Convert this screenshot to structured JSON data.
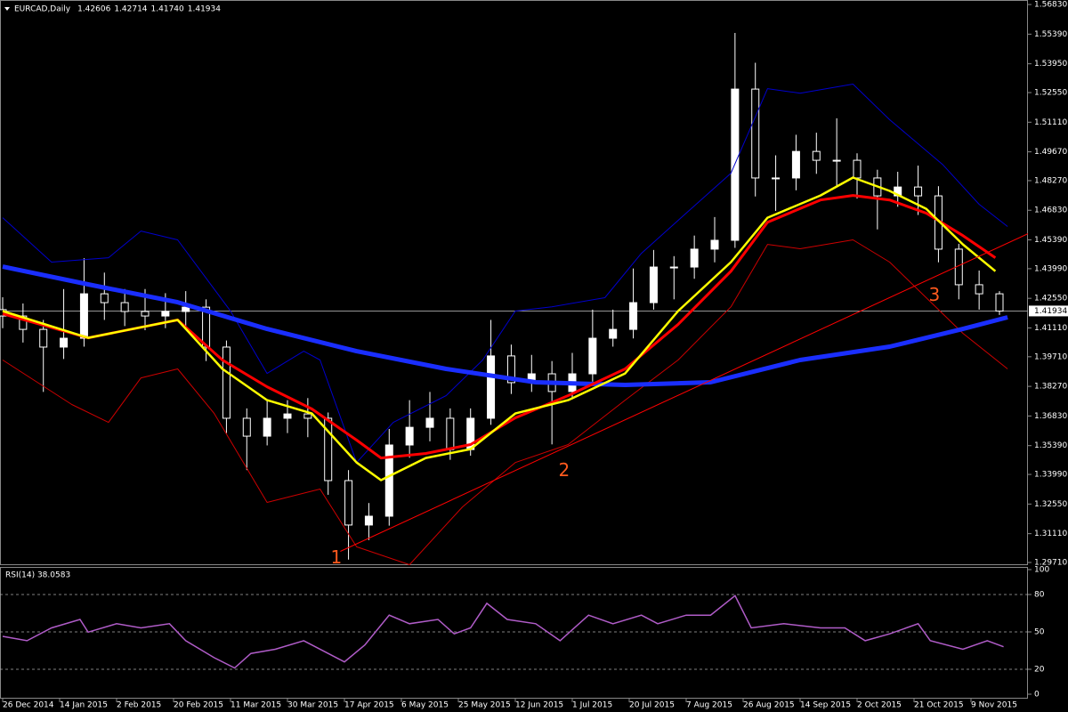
{
  "chart_data": [
    {
      "type": "candlestick",
      "title": "EURCAD,Daily",
      "quote": [
        "1.42606",
        "1.42714",
        "1.41740",
        "1.41934"
      ],
      "xlim": [
        0,
        252
      ],
      "xticks": [
        {
          "value": 0,
          "label": "26 Dec 2014"
        },
        {
          "value": 14,
          "label": "14 Jan 2015"
        },
        {
          "value": 28,
          "label": "2 Feb 2015"
        },
        {
          "value": 42,
          "label": "20 Feb 2015"
        },
        {
          "value": 56,
          "label": "11 Mar 2015"
        },
        {
          "value": 70,
          "label": "30 Mar 2015"
        },
        {
          "value": 84,
          "label": "17 Apr 2015"
        },
        {
          "value": 98,
          "label": "6 May 2015"
        },
        {
          "value": 112,
          "label": "25 May 2015"
        },
        {
          "value": 126,
          "label": "12 Jun 2015"
        },
        {
          "value": 140,
          "label": "1 Jul 2015"
        },
        {
          "value": 154,
          "label": "20 Jul 2015"
        },
        {
          "value": 168,
          "label": "7 Aug 2015"
        },
        {
          "value": 182,
          "label": "26 Aug 2015"
        },
        {
          "value": 196,
          "label": "14 Sep 2015"
        },
        {
          "value": 210,
          "label": "2 Oct 2015"
        },
        {
          "value": 224,
          "label": "21 Oct 2015"
        },
        {
          "value": 238,
          "label": "9 Nov 2015"
        }
      ],
      "ylim": [
        1.2958,
        1.5705
      ],
      "yticks": [
        {
          "value": 1.5683,
          "label": "1.56830"
        },
        {
          "value": 1.5539,
          "label": "1.55390"
        },
        {
          "value": 1.5395,
          "label": "1.53950"
        },
        {
          "value": 1.5255,
          "label": "1.52550"
        },
        {
          "value": 1.5111,
          "label": "1.51110"
        },
        {
          "value": 1.4967,
          "label": "1.49670"
        },
        {
          "value": 1.4827,
          "label": "1.48270"
        },
        {
          "value": 1.4683,
          "label": "1.46830"
        },
        {
          "value": 1.4539,
          "label": "1.45390"
        },
        {
          "value": 1.4399,
          "label": "1.43990"
        },
        {
          "value": 1.4255,
          "label": "1.42550"
        },
        {
          "value": 1.4111,
          "label": "1.41110"
        },
        {
          "value": 1.3971,
          "label": "1.39710"
        },
        {
          "value": 1.3827,
          "label": "1.38270"
        },
        {
          "value": 1.3683,
          "label": "1.36830"
        },
        {
          "value": 1.3539,
          "label": "1.35390"
        },
        {
          "value": 1.3399,
          "label": "1.33990"
        },
        {
          "value": 1.3255,
          "label": "1.32550"
        },
        {
          "value": 1.3111,
          "label": "1.31110"
        },
        {
          "value": 1.2971,
          "label": "1.29710"
        }
      ],
      "last_price": {
        "value": 1.41934,
        "label": "1.41934"
      },
      "x": [
        0,
        5,
        10,
        15,
        20,
        25,
        30,
        35,
        40,
        45,
        50,
        55,
        60,
        65,
        70,
        75,
        80,
        85,
        90,
        95,
        100,
        105,
        110,
        115,
        120,
        125,
        130,
        135,
        140,
        145,
        150,
        155,
        160,
        165,
        170,
        175,
        180,
        185,
        190,
        195,
        200,
        205,
        210,
        215,
        220,
        225,
        230,
        235,
        240,
        245
      ],
      "open": [
        1.42,
        1.4169,
        1.4104,
        1.4018,
        1.4061,
        1.4277,
        1.4234,
        1.4191,
        1.4169,
        1.4191,
        1.4212,
        1.4018,
        1.3672,
        1.3585,
        1.3672,
        1.3693,
        1.3672,
        1.3369,
        1.3153,
        1.3196,
        1.3542,
        1.3628,
        1.3672,
        1.352,
        1.3672,
        1.3975,
        1.3845,
        1.3888,
        1.3802,
        1.3888,
        1.4061,
        1.4104,
        1.4234,
        1.4407,
        1.4407,
        1.4494,
        1.4537,
        1.5272,
        1.484,
        1.484,
        1.4969,
        1.4926,
        1.4926,
        1.484,
        1.4753,
        1.4796,
        1.4753,
        1.4494,
        1.4321,
        1.4277
      ],
      "high": [
        1.426,
        1.423,
        1.415,
        1.43,
        1.445,
        1.438,
        1.43,
        1.43,
        1.428,
        1.429,
        1.425,
        1.405,
        1.372,
        1.376,
        1.376,
        1.377,
        1.37,
        1.342,
        1.326,
        1.362,
        1.376,
        1.38,
        1.372,
        1.372,
        1.415,
        1.403,
        1.398,
        1.395,
        1.399,
        1.42,
        1.42,
        1.44,
        1.449,
        1.446,
        1.456,
        1.465,
        1.5545,
        1.54,
        1.495,
        1.505,
        1.506,
        1.513,
        1.496,
        1.488,
        1.487,
        1.49,
        1.48,
        1.452,
        1.439,
        1.429
      ],
      "low": [
        1.411,
        1.404,
        1.38,
        1.396,
        1.402,
        1.415,
        1.412,
        1.41,
        1.411,
        1.412,
        1.395,
        1.36,
        1.342,
        1.354,
        1.36,
        1.358,
        1.33,
        1.2985,
        1.308,
        1.315,
        1.348,
        1.356,
        1.347,
        1.349,
        1.364,
        1.379,
        1.38,
        1.3545,
        1.377,
        1.385,
        1.402,
        1.406,
        1.42,
        1.425,
        1.435,
        1.443,
        1.45,
        1.475,
        1.468,
        1.478,
        1.486,
        1.48,
        1.474,
        1.459,
        1.47,
        1.466,
        1.443,
        1.425,
        1.42,
        1.4174
      ],
      "close": [
        1.4169,
        1.4104,
        1.4018,
        1.4061,
        1.4277,
        1.4234,
        1.4191,
        1.4169,
        1.4191,
        1.4212,
        1.4018,
        1.3672,
        1.3585,
        1.3672,
        1.3693,
        1.3672,
        1.3369,
        1.3153,
        1.3196,
        1.3542,
        1.3628,
        1.3672,
        1.352,
        1.3672,
        1.3975,
        1.3845,
        1.3888,
        1.3802,
        1.3888,
        1.4061,
        1.4104,
        1.4234,
        1.4407,
        1.4407,
        1.4494,
        1.4537,
        1.5272,
        1.484,
        1.484,
        1.4969,
        1.4926,
        1.4926,
        1.484,
        1.4753,
        1.4796,
        1.4753,
        1.4494,
        1.4321,
        1.4277,
        1.4193
      ],
      "lines": [
        {
          "color": "#0000cd",
          "width": 1,
          "x": [
            0,
            12,
            26,
            34,
            43,
            56,
            65,
            74,
            78,
            87,
            96,
            109,
            118,
            126,
            135,
            148,
            157,
            168,
            179,
            188,
            196,
            209,
            218,
            231,
            240,
            247
          ],
          "values": [
            1.4647,
            1.4431,
            1.4452,
            1.4582,
            1.4539,
            1.4193,
            1.389,
            1.3998,
            1.3955,
            1.3457,
            1.3652,
            1.3782,
            1.3955,
            1.4193,
            1.4214,
            1.4258,
            1.4474,
            1.4669,
            1.4863,
            1.5274,
            1.5252,
            1.5296,
            1.5123,
            1.4906,
            1.4712,
            1.4604
          ]
        },
        {
          "color": "#cc0000",
          "width": 1,
          "x": [
            0,
            17,
            26,
            34,
            43,
            52,
            65,
            78,
            87,
            100,
            113,
            126,
            139,
            153,
            166,
            179,
            188,
            196,
            209,
            218,
            227,
            236,
            247
          ],
          "values": [
            1.3955,
            1.3739,
            1.3652,
            1.3868,
            1.3912,
            1.3695,
            1.3263,
            1.3328,
            1.3047,
            1.296,
            1.3241,
            1.3457,
            1.3544,
            1.376,
            1.3955,
            1.4214,
            1.4517,
            1.4496,
            1.4539,
            1.4431,
            1.4258,
            1.4085,
            1.3912
          ]
        },
        {
          "color": "#1a2eff",
          "width": 5,
          "x": [
            0,
            21,
            43,
            65,
            87,
            109,
            131,
            153,
            174,
            196,
            218,
            236,
            247
          ],
          "values": [
            1.4409,
            1.4323,
            1.4236,
            1.4106,
            1.3998,
            1.3912,
            1.3847,
            1.3834,
            1.3847,
            1.3955,
            1.402,
            1.4106,
            1.4163
          ]
        },
        {
          "color": "#ff0000",
          "width": 3,
          "x": [
            0,
            21,
            43,
            54,
            65,
            76,
            87,
            93,
            104,
            115,
            126,
            139,
            153,
            166,
            179,
            188,
            201,
            209,
            218,
            227,
            236,
            244
          ],
          "values": [
            1.418,
            1.4063,
            1.415,
            1.3955,
            1.3825,
            1.3717,
            1.3566,
            1.3479,
            1.3501,
            1.3544,
            1.3674,
            1.3782,
            1.3912,
            1.4128,
            1.4387,
            1.4625,
            1.4733,
            1.4755,
            1.4733,
            1.4669,
            1.456,
            1.4452
          ]
        },
        {
          "color": "#ffff00",
          "width": 2.5,
          "x": [
            0,
            21,
            43,
            54,
            65,
            76,
            87,
            93,
            104,
            115,
            126,
            139,
            153,
            166,
            179,
            188,
            201,
            209,
            218,
            227,
            236,
            244
          ],
          "values": [
            1.4193,
            1.4063,
            1.415,
            1.3912,
            1.376,
            1.3695,
            1.3457,
            1.3371,
            1.3479,
            1.3522,
            1.3695,
            1.376,
            1.389,
            1.4193,
            1.4431,
            1.4647,
            1.4755,
            1.4842,
            1.4777,
            1.469,
            1.4517,
            1.4387
          ]
        },
        {
          "color": "#ff0000",
          "width": 1,
          "x": [
            83,
            252
          ],
          "values": [
            1.3025,
            1.4569
          ]
        }
      ],
      "annotations": [
        {
          "text": "1",
          "x": 82,
          "y": 1.299
        },
        {
          "text": "2",
          "x": 138,
          "y": 1.3415
        },
        {
          "text": "3",
          "x": 229,
          "y": 1.4267
        }
      ]
    },
    {
      "type": "line",
      "title": "RSI(14) 38.0583",
      "color": "#b05cc8",
      "ylim": [
        0,
        100
      ],
      "yticks": [
        0,
        20,
        50,
        80,
        100
      ],
      "x": [
        0,
        6,
        12,
        19,
        21,
        28,
        34,
        41,
        45,
        52,
        57,
        61,
        67,
        74,
        80,
        84,
        89,
        95,
        100,
        107,
        111,
        115,
        119,
        124,
        131,
        137,
        144,
        150,
        157,
        161,
        168,
        174,
        180,
        184,
        192,
        201,
        207,
        212,
        218,
        225,
        228,
        236,
        242,
        246
      ],
      "values": [
        46.4,
        42.9,
        53.2,
        60.0,
        49.8,
        56.6,
        53.2,
        56.6,
        42.9,
        29.3,
        21.1,
        32.7,
        36.1,
        42.9,
        32.7,
        25.9,
        39.5,
        63.4,
        56.6,
        60.0,
        48.4,
        53.2,
        72.9,
        60.0,
        56.6,
        42.9,
        63.4,
        56.6,
        63.4,
        56.6,
        63.4,
        63.4,
        79.1,
        53.2,
        56.6,
        53.2,
        53.2,
        42.9,
        48.4,
        56.6,
        42.9,
        36.1,
        42.9,
        38.06
      ]
    }
  ]
}
